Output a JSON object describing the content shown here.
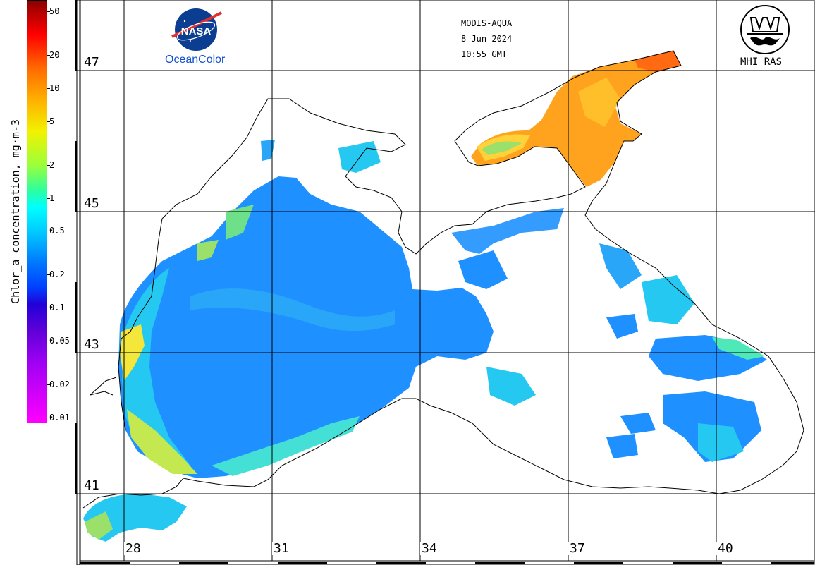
{
  "colorbar": {
    "title": "Chlor_a concentration, mg·m-3",
    "labels": [
      {
        "text": "50",
        "value": 50
      },
      {
        "text": "20",
        "value": 20
      },
      {
        "text": "10",
        "value": 10
      },
      {
        "text": "5",
        "value": 5
      },
      {
        "text": "2",
        "value": 2
      },
      {
        "text": "1",
        "value": 1
      },
      {
        "text": "0.5",
        "value": 0.5
      },
      {
        "text": "0.2",
        "value": 0.2
      },
      {
        "text": "0.1",
        "value": 0.1
      },
      {
        "text": "0.05",
        "value": 0.05
      },
      {
        "text": "0.02",
        "value": 0.02
      },
      {
        "text": "0.01",
        "value": 0.01
      }
    ],
    "scale": "log"
  },
  "header": {
    "sensor": "MODIS-AQUA",
    "date": "8 Jun 2024",
    "time": "10:55 GMT"
  },
  "logos": {
    "nasa_text": "NASA",
    "oceancolor_text": "OceanColor",
    "mhi_text": "MHI RAS"
  },
  "grid": {
    "latitudes": [
      {
        "text": "47",
        "value": 47
      },
      {
        "text": "45",
        "value": 45
      },
      {
        "text": "43",
        "value": 43
      },
      {
        "text": "41",
        "value": 41
      }
    ],
    "longitudes": [
      {
        "text": "28",
        "value": 28
      },
      {
        "text": "31",
        "value": 31
      },
      {
        "text": "34",
        "value": 34
      },
      {
        "text": "37",
        "value": 37
      },
      {
        "text": "40",
        "value": 40
      }
    ]
  },
  "colors": {
    "coast": "#000000",
    "grid": "#000000",
    "low_chl": "#1e90ff",
    "mid_chl": "#25d8e8",
    "high_chl": "#ffb020",
    "very_high_chl": "#ff4a00"
  }
}
